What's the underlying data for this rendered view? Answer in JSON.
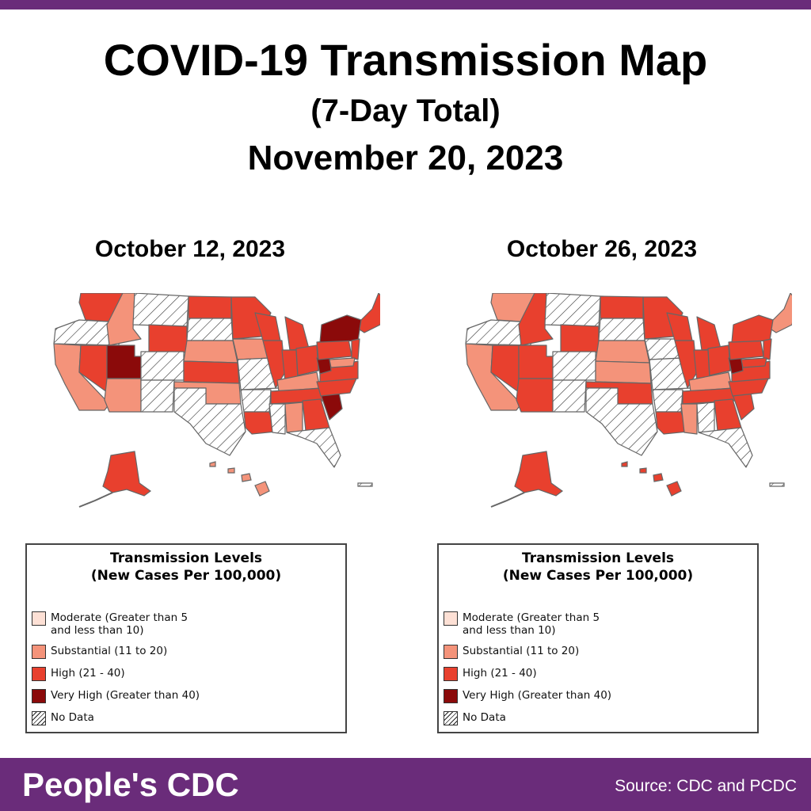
{
  "header": {
    "title": "COVID-19 Transmission Map",
    "subtitle": "(7-Day Total)",
    "date": "November 20, 2023"
  },
  "colors": {
    "brand_purple": "#6a2c7a",
    "moderate": "#fde0d5",
    "substantial": "#f4937a",
    "high": "#e8402e",
    "very_high": "#8b0a0a",
    "no_data": "hatch"
  },
  "maps": [
    {
      "title": "October 12, 2023"
    },
    {
      "title": "October 26, 2023"
    }
  ],
  "legend": {
    "title_line1": "Transmission Levels",
    "title_line2": "(New Cases Per 100,000)",
    "items": [
      {
        "label": "Moderate (Greater than 5\nand less than 10)",
        "color": "moderate"
      },
      {
        "label": "Substantial (11 to 20)",
        "color": "substantial"
      },
      {
        "label": "High (21 - 40)",
        "color": "high"
      },
      {
        "label": "Very High (Greater than 40)",
        "color": "very_high"
      },
      {
        "label": "No Data",
        "color": "no_data"
      }
    ]
  },
  "footer": {
    "brand": "People's CDC",
    "source": "Source: CDC and PCDC"
  }
}
